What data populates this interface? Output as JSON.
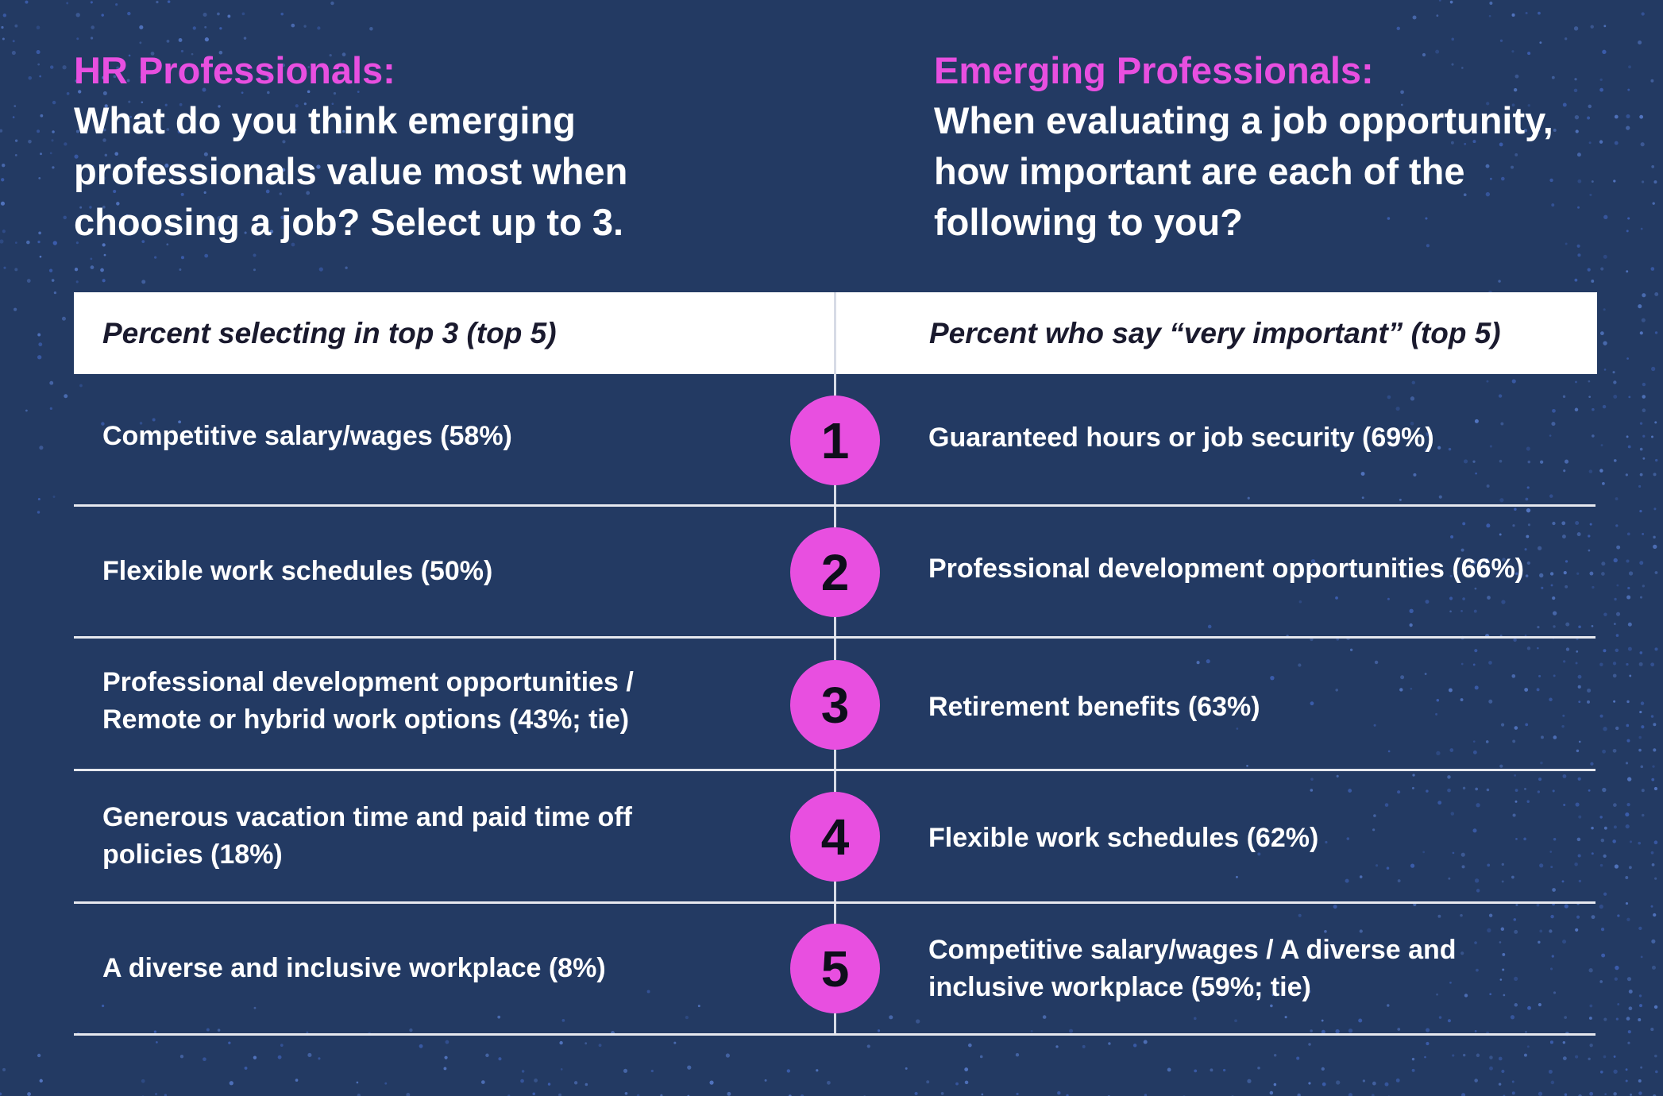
{
  "hr": {
    "label": "HR Professionals:",
    "question": "What do you think emerging professionals value most when choosing a job? Select up to 3.",
    "column_header": "Percent selecting in top 3 (top 5)"
  },
  "emerging": {
    "label": "Emerging Professionals:",
    "question": "When evaluating a job opportunity, how important are each of the following to you?",
    "column_header": "Percent who say “very important” (top 5)"
  },
  "rows": [
    {
      "rank": "1",
      "hr_text": "Competitive salary/wages (58%)",
      "emerging_text": "Guaranteed hours or job security (69%)"
    },
    {
      "rank": "2",
      "hr_text": "Flexible work schedules (50%)",
      "emerging_text": "Professional development opportunities (66%)"
    },
    {
      "rank": "3",
      "hr_text": "Professional development opportunities / Remote or hybrid work options (43%; tie)",
      "emerging_text": "Retirement benefits (63%)"
    },
    {
      "rank": "4",
      "hr_text": "Generous vacation time and paid time off policies (18%)",
      "emerging_text": "Flexible work schedules (62%)"
    },
    {
      "rank": "5",
      "hr_text": "A diverse and inclusive workplace (8%)",
      "emerging_text": "Competitive salary/wages / A diverse and inclusive workplace (59%; tie)"
    }
  ],
  "colors": {
    "background": "#233a63",
    "accent": "#e84fe0",
    "text": "#ffffff"
  }
}
